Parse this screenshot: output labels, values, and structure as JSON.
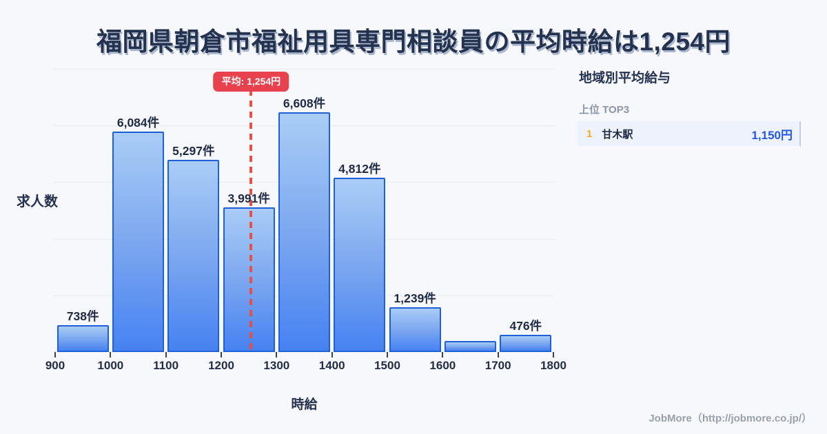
{
  "title": "福岡県朝倉市福祉用具専門相談員の平均時給は1,254円",
  "colors": {
    "background": "#f7f8fb",
    "bar_border": "#1f5fd9",
    "bar_gradient_top": "#a9cdf6",
    "bar_gradient_bottom": "#4682f2",
    "average_red": "#e8424e",
    "accent_blue": "#2457e6",
    "rank_gold": "#f0ad1e",
    "text_dark": "#24324f",
    "text_gray": "#8b95a8"
  },
  "chart_data": {
    "type": "bar",
    "title": "福岡県朝倉市福祉用具専門相談員の平均時給は1,254円",
    "xlabel": "時給",
    "ylabel": "求人数",
    "unit": "件",
    "x_ticks": [
      900,
      1000,
      1100,
      1200,
      1300,
      1400,
      1500,
      1600,
      1700,
      1800
    ],
    "xlim": [
      900,
      1800
    ],
    "ylim": [
      0,
      7000
    ],
    "grid": "horizontal",
    "bins": [
      {
        "range": [
          900,
          1000
        ],
        "value": 738,
        "label": "738件"
      },
      {
        "range": [
          1000,
          1100
        ],
        "value": 6084,
        "label": "6,084件"
      },
      {
        "range": [
          1100,
          1200
        ],
        "value": 5297,
        "label": "5,297件"
      },
      {
        "range": [
          1200,
          1300
        ],
        "value": 3991,
        "label": "3,991件"
      },
      {
        "range": [
          1300,
          1400
        ],
        "value": 6608,
        "label": "6,608件"
      },
      {
        "range": [
          1400,
          1500
        ],
        "value": 4812,
        "label": "4,812件"
      },
      {
        "range": [
          1500,
          1600
        ],
        "value": 1239,
        "label": "1,239件"
      },
      {
        "range": [
          1600,
          1700
        ],
        "value": 300,
        "label": "",
        "estimated": true
      },
      {
        "range": [
          1700,
          1800
        ],
        "value": 476,
        "label": "476件"
      }
    ],
    "average_line": {
      "value": 1254,
      "label": "平均: 1,254円"
    }
  },
  "side_panel": {
    "title": "地域別平均給与",
    "subtitle": "上位 TOP3",
    "rows": [
      {
        "rank": "1",
        "name": "甘木駅",
        "value": "1,150円"
      }
    ]
  },
  "footer": {
    "credit": "JobMore（http://jobmore.co.jp/）"
  }
}
